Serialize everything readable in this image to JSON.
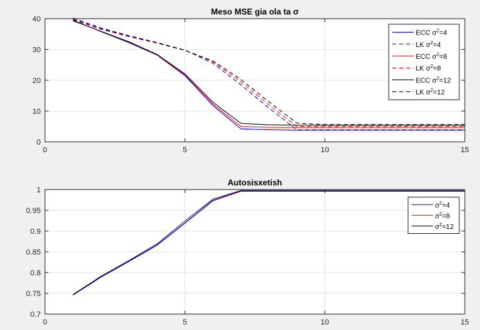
{
  "chart_data": [
    {
      "type": "line",
      "title": "Meso MSE gia ola ta σ",
      "xlabel": "",
      "ylabel": "",
      "xlim": [
        0,
        15
      ],
      "ylim": [
        0,
        40
      ],
      "xticks": [
        0,
        5,
        10,
        15
      ],
      "yticks": [
        0,
        10,
        20,
        30,
        40
      ],
      "grid": true,
      "legend_position": "top-right",
      "x": [
        1,
        2,
        3,
        4,
        5,
        6,
        7,
        8,
        9,
        10,
        11,
        12,
        13,
        14,
        15
      ],
      "series": [
        {
          "name": "ECC σ",
          "sup": "2",
          "suffix": "=4",
          "color": "#0000ff",
          "dash": "solid",
          "values": [
            39.5,
            35.8,
            32.2,
            28.2,
            21.5,
            11.8,
            4.2,
            3.9,
            3.8,
            3.8,
            3.8,
            3.8,
            3.8,
            3.8,
            3.8
          ]
        },
        {
          "name": "LK σ",
          "sup": "2",
          "suffix": "=4",
          "color": "#0000ff",
          "dash": "dashed",
          "values": [
            40.2,
            37.0,
            34.5,
            32.3,
            29.8,
            25.5,
            18.5,
            11.0,
            3.9,
            3.9,
            3.9,
            3.9,
            3.9,
            3.9,
            3.9
          ]
        },
        {
          "name": "ECC σ",
          "sup": "2",
          "suffix": "=8",
          "color": "#ff0000",
          "dash": "solid",
          "values": [
            39.4,
            35.9,
            32.4,
            28.3,
            21.8,
            12.3,
            5.0,
            4.7,
            4.7,
            4.7,
            4.7,
            4.7,
            4.7,
            4.7,
            4.7
          ]
        },
        {
          "name": "LK σ",
          "sup": "2",
          "suffix": "=8",
          "color": "#ff0000",
          "dash": "dashed",
          "values": [
            39.9,
            36.8,
            34.3,
            32.2,
            29.7,
            26.0,
            19.5,
            12.0,
            5.0,
            5.0,
            5.0,
            5.0,
            5.0,
            5.0,
            5.0
          ]
        },
        {
          "name": "ECC σ",
          "sup": "2",
          "suffix": "=12",
          "color": "#000000",
          "dash": "solid",
          "values": [
            39.3,
            35.9,
            32.5,
            28.4,
            22.1,
            12.9,
            6.0,
            5.5,
            5.4,
            5.4,
            5.4,
            5.4,
            5.4,
            5.4,
            5.4
          ]
        },
        {
          "name": "LK σ",
          "sup": "2",
          "suffix": "=12",
          "color": "#000000",
          "dash": "dashed",
          "values": [
            39.7,
            36.6,
            34.2,
            32.1,
            29.7,
            26.3,
            20.3,
            13.0,
            6.1,
            5.6,
            5.6,
            5.6,
            5.6,
            5.6,
            5.6
          ]
        }
      ]
    },
    {
      "type": "line",
      "title": "Autosisxetish",
      "xlabel": "",
      "ylabel": "",
      "xlim": [
        0,
        15
      ],
      "ylim": [
        0.7,
        1
      ],
      "xticks": [
        0,
        5,
        10,
        15
      ],
      "yticks": [
        0.7,
        0.75,
        0.8,
        0.85,
        0.9,
        0.95,
        1
      ],
      "grid": true,
      "legend_position": "top-right",
      "x": [
        1,
        2,
        3,
        4,
        5,
        6,
        7,
        8,
        9,
        10,
        11,
        12,
        13,
        14,
        15
      ],
      "series": [
        {
          "name": "σ",
          "sup": "2",
          "suffix": "=4",
          "color": "#0000ff",
          "dash": "solid",
          "values": [
            0.747,
            0.791,
            0.829,
            0.869,
            0.924,
            0.977,
            0.998,
            0.998,
            0.998,
            0.998,
            0.998,
            0.998,
            0.998,
            0.998,
            0.998
          ]
        },
        {
          "name": "σ",
          "sup": "2",
          "suffix": "=8",
          "color": "#ff0000",
          "dash": "solid",
          "values": [
            0.746,
            0.789,
            0.827,
            0.866,
            0.919,
            0.974,
            0.997,
            0.997,
            0.997,
            0.997,
            0.997,
            0.997,
            0.997,
            0.997,
            0.997
          ]
        },
        {
          "name": "σ",
          "sup": "2",
          "suffix": "=12",
          "color": "#000000",
          "dash": "solid",
          "values": [
            0.746,
            0.789,
            0.827,
            0.866,
            0.919,
            0.973,
            0.996,
            0.996,
            0.996,
            0.996,
            0.996,
            0.996,
            0.996,
            0.996,
            0.996
          ]
        }
      ]
    }
  ]
}
